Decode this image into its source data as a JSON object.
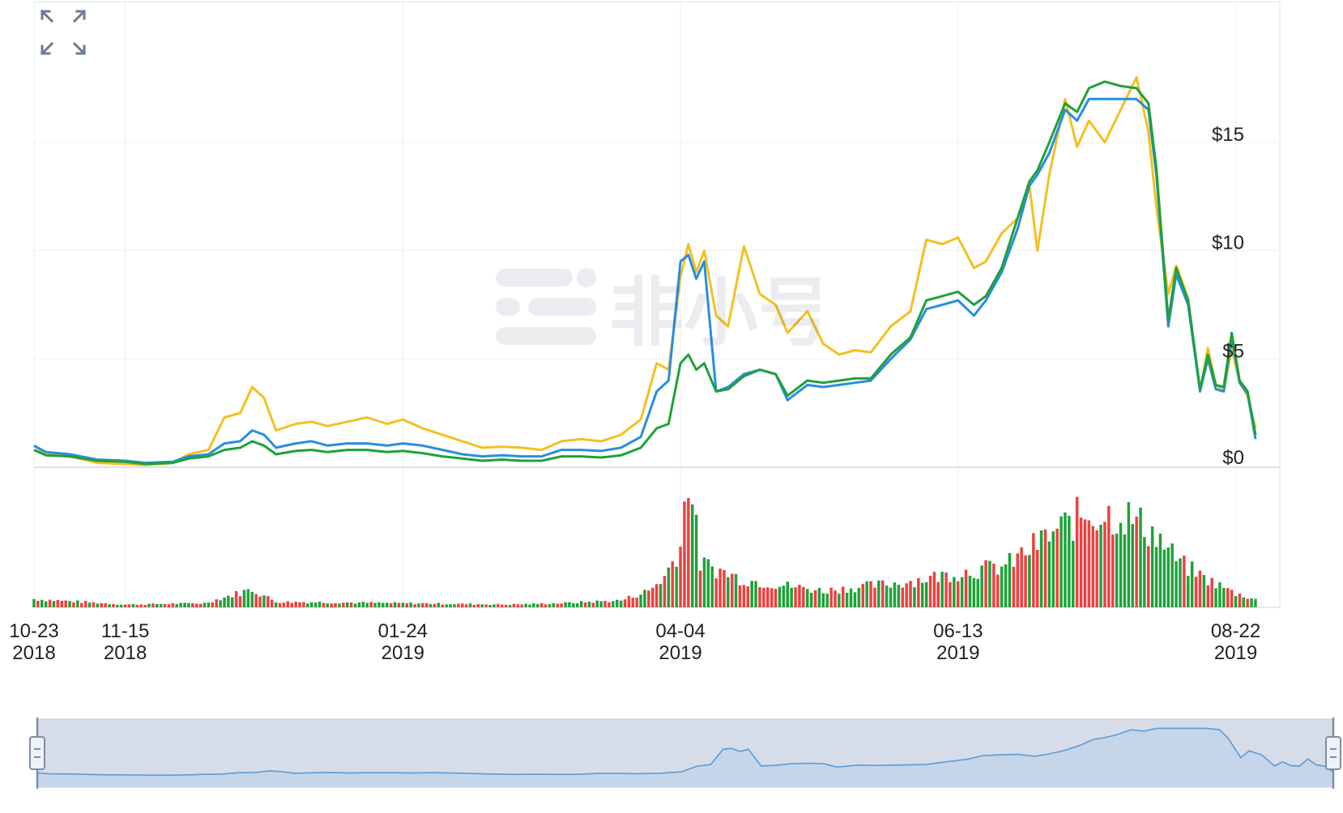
{
  "watermark": {
    "text": "非小号"
  },
  "toolbar": {
    "expand_icon": "expand-icon"
  },
  "colors": {
    "yellow": "#f4c020",
    "blue": "#2a8de0",
    "green": "#1fa13a",
    "vol_up": "#1fa13a",
    "vol_down": "#ef3f3f",
    "navigator_fill": "#d6dde9",
    "navigator_line": "#5b9bd5"
  },
  "chart_data": {
    "type": "line",
    "x_tick_labels": [
      {
        "date": "2018-10-23",
        "line1": "10-23",
        "line2": "2018"
      },
      {
        "date": "2018-11-15",
        "line1": "11-15",
        "line2": "2018"
      },
      {
        "date": "2019-01-24",
        "line1": "01-24",
        "line2": "2019"
      },
      {
        "date": "2019-04-04",
        "line1": "04-04",
        "line2": "2019"
      },
      {
        "date": "2019-06-13",
        "line1": "06-13",
        "line2": "2019"
      },
      {
        "date": "2019-08-22",
        "line1": "08-22",
        "line2": "2019"
      }
    ],
    "y_tick_labels": [
      {
        "value": 0,
        "label": "$0"
      },
      {
        "value": 5,
        "label": "$5"
      },
      {
        "value": 10,
        "label": "$10"
      },
      {
        "value": 15,
        "label": "$15"
      }
    ],
    "x_range": [
      "2018-10-23",
      "2019-08-27"
    ],
    "ylim": [
      0,
      20
    ],
    "grid": true,
    "series": [
      {
        "color": "yellow",
        "points": [
          [
            "2018-10-23",
            1.0
          ],
          [
            "2018-10-26",
            0.6
          ],
          [
            "2018-11-01",
            0.5
          ],
          [
            "2018-11-08",
            0.2
          ],
          [
            "2018-11-15",
            0.15
          ],
          [
            "2018-11-20",
            0.1
          ],
          [
            "2018-11-27",
            0.2
          ],
          [
            "2018-12-01",
            0.6
          ],
          [
            "2018-12-06",
            0.8
          ],
          [
            "2018-12-10",
            2.3
          ],
          [
            "2018-12-14",
            2.5
          ],
          [
            "2018-12-17",
            3.7
          ],
          [
            "2018-12-20",
            3.2
          ],
          [
            "2018-12-23",
            1.7
          ],
          [
            "2018-12-28",
            2.0
          ],
          [
            "2019-01-01",
            2.1
          ],
          [
            "2019-01-05",
            1.9
          ],
          [
            "2019-01-10",
            2.1
          ],
          [
            "2019-01-15",
            2.3
          ],
          [
            "2019-01-20",
            2.0
          ],
          [
            "2019-01-24",
            2.2
          ],
          [
            "2019-01-29",
            1.8
          ],
          [
            "2019-02-03",
            1.5
          ],
          [
            "2019-02-08",
            1.2
          ],
          [
            "2019-02-13",
            0.9
          ],
          [
            "2019-02-18",
            0.95
          ],
          [
            "2019-02-23",
            0.9
          ],
          [
            "2019-02-28",
            0.8
          ],
          [
            "2019-03-05",
            1.2
          ],
          [
            "2019-03-10",
            1.3
          ],
          [
            "2019-03-15",
            1.2
          ],
          [
            "2019-03-20",
            1.5
          ],
          [
            "2019-03-25",
            2.2
          ],
          [
            "2019-03-29",
            4.8
          ],
          [
            "2019-04-01",
            4.5
          ],
          [
            "2019-04-04",
            8.8
          ],
          [
            "2019-04-06",
            10.3
          ],
          [
            "2019-04-08",
            9.0
          ],
          [
            "2019-04-10",
            10.0
          ],
          [
            "2019-04-13",
            7.0
          ],
          [
            "2019-04-16",
            6.5
          ],
          [
            "2019-04-20",
            10.2
          ],
          [
            "2019-04-24",
            8.0
          ],
          [
            "2019-04-28",
            7.5
          ],
          [
            "2019-05-01",
            6.2
          ],
          [
            "2019-05-06",
            7.2
          ],
          [
            "2019-05-10",
            5.7
          ],
          [
            "2019-05-14",
            5.2
          ],
          [
            "2019-05-18",
            5.4
          ],
          [
            "2019-05-22",
            5.3
          ],
          [
            "2019-05-27",
            6.5
          ],
          [
            "2019-06-01",
            7.2
          ],
          [
            "2019-06-05",
            10.5
          ],
          [
            "2019-06-09",
            10.3
          ],
          [
            "2019-06-13",
            10.6
          ],
          [
            "2019-06-17",
            9.2
          ],
          [
            "2019-06-20",
            9.5
          ],
          [
            "2019-06-24",
            10.8
          ],
          [
            "2019-06-28",
            11.5
          ],
          [
            "2019-07-01",
            13.0
          ],
          [
            "2019-07-03",
            10.0
          ],
          [
            "2019-07-06",
            13.5
          ],
          [
            "2019-07-10",
            17.0
          ],
          [
            "2019-07-13",
            14.8
          ],
          [
            "2019-07-16",
            16.0
          ],
          [
            "2019-07-20",
            15.0
          ],
          [
            "2019-07-24",
            16.5
          ],
          [
            "2019-07-28",
            18.0
          ],
          [
            "2019-07-31",
            15.5
          ],
          [
            "2019-08-02",
            12.0
          ],
          [
            "2019-08-05",
            8.0
          ],
          [
            "2019-08-07",
            9.3
          ],
          [
            "2019-08-10",
            7.8
          ],
          [
            "2019-08-13",
            3.5
          ],
          [
            "2019-08-15",
            5.5
          ],
          [
            "2019-08-17",
            3.8
          ],
          [
            "2019-08-19",
            3.5
          ],
          [
            "2019-08-21",
            5.5
          ],
          [
            "2019-08-23",
            3.9
          ],
          [
            "2019-08-25",
            3.3
          ],
          [
            "2019-08-27",
            1.8
          ]
        ]
      },
      {
        "color": "blue",
        "points": [
          [
            "2018-10-23",
            1.0
          ],
          [
            "2018-10-26",
            0.7
          ],
          [
            "2018-11-01",
            0.6
          ],
          [
            "2018-11-08",
            0.35
          ],
          [
            "2018-11-15",
            0.3
          ],
          [
            "2018-11-20",
            0.2
          ],
          [
            "2018-11-27",
            0.25
          ],
          [
            "2018-12-01",
            0.5
          ],
          [
            "2018-12-06",
            0.6
          ],
          [
            "2018-12-10",
            1.1
          ],
          [
            "2018-12-14",
            1.2
          ],
          [
            "2018-12-17",
            1.7
          ],
          [
            "2018-12-20",
            1.5
          ],
          [
            "2018-12-23",
            0.9
          ],
          [
            "2018-12-28",
            1.1
          ],
          [
            "2019-01-01",
            1.2
          ],
          [
            "2019-01-05",
            1.0
          ],
          [
            "2019-01-10",
            1.1
          ],
          [
            "2019-01-15",
            1.1
          ],
          [
            "2019-01-20",
            1.0
          ],
          [
            "2019-01-24",
            1.1
          ],
          [
            "2019-01-29",
            1.0
          ],
          [
            "2019-02-03",
            0.8
          ],
          [
            "2019-02-08",
            0.6
          ],
          [
            "2019-02-13",
            0.5
          ],
          [
            "2019-02-18",
            0.55
          ],
          [
            "2019-02-23",
            0.5
          ],
          [
            "2019-02-28",
            0.5
          ],
          [
            "2019-03-05",
            0.8
          ],
          [
            "2019-03-10",
            0.8
          ],
          [
            "2019-03-15",
            0.75
          ],
          [
            "2019-03-20",
            0.9
          ],
          [
            "2019-03-25",
            1.4
          ],
          [
            "2019-03-29",
            3.5
          ],
          [
            "2019-04-01",
            4.0
          ],
          [
            "2019-04-04",
            9.5
          ],
          [
            "2019-04-06",
            9.8
          ],
          [
            "2019-04-08",
            8.7
          ],
          [
            "2019-04-10",
            9.5
          ],
          [
            "2019-04-13",
            3.5
          ],
          [
            "2019-04-16",
            3.7
          ],
          [
            "2019-04-20",
            4.3
          ],
          [
            "2019-04-24",
            4.5
          ],
          [
            "2019-04-28",
            4.3
          ],
          [
            "2019-05-01",
            3.1
          ],
          [
            "2019-05-06",
            3.8
          ],
          [
            "2019-05-10",
            3.7
          ],
          [
            "2019-05-14",
            3.8
          ],
          [
            "2019-05-18",
            3.9
          ],
          [
            "2019-05-22",
            4.0
          ],
          [
            "2019-05-27",
            5.0
          ],
          [
            "2019-06-01",
            5.9
          ],
          [
            "2019-06-05",
            7.3
          ],
          [
            "2019-06-09",
            7.5
          ],
          [
            "2019-06-13",
            7.7
          ],
          [
            "2019-06-17",
            7.0
          ],
          [
            "2019-06-20",
            7.7
          ],
          [
            "2019-06-24",
            9.0
          ],
          [
            "2019-06-28",
            11.0
          ],
          [
            "2019-07-01",
            13.0
          ],
          [
            "2019-07-03",
            13.5
          ],
          [
            "2019-07-06",
            14.5
          ],
          [
            "2019-07-10",
            16.5
          ],
          [
            "2019-07-13",
            16.0
          ],
          [
            "2019-07-16",
            17.0
          ],
          [
            "2019-07-20",
            17.0
          ],
          [
            "2019-07-24",
            17.0
          ],
          [
            "2019-07-28",
            17.0
          ],
          [
            "2019-07-31",
            16.5
          ],
          [
            "2019-08-02",
            13.5
          ],
          [
            "2019-08-05",
            6.5
          ],
          [
            "2019-08-07",
            8.9
          ],
          [
            "2019-08-10",
            7.5
          ],
          [
            "2019-08-13",
            3.5
          ],
          [
            "2019-08-15",
            5.0
          ],
          [
            "2019-08-17",
            3.6
          ],
          [
            "2019-08-19",
            3.5
          ],
          [
            "2019-08-21",
            6.0
          ],
          [
            "2019-08-23",
            3.9
          ],
          [
            "2019-08-25",
            3.4
          ],
          [
            "2019-08-27",
            1.3
          ]
        ]
      },
      {
        "color": "green",
        "points": [
          [
            "2018-10-23",
            0.8
          ],
          [
            "2018-10-26",
            0.55
          ],
          [
            "2018-11-01",
            0.5
          ],
          [
            "2018-11-08",
            0.3
          ],
          [
            "2018-11-15",
            0.25
          ],
          [
            "2018-11-20",
            0.15
          ],
          [
            "2018-11-27",
            0.2
          ],
          [
            "2018-12-01",
            0.4
          ],
          [
            "2018-12-06",
            0.5
          ],
          [
            "2018-12-10",
            0.8
          ],
          [
            "2018-12-14",
            0.9
          ],
          [
            "2018-12-17",
            1.2
          ],
          [
            "2018-12-20",
            1.0
          ],
          [
            "2018-12-23",
            0.6
          ],
          [
            "2018-12-28",
            0.75
          ],
          [
            "2019-01-01",
            0.8
          ],
          [
            "2019-01-05",
            0.7
          ],
          [
            "2019-01-10",
            0.8
          ],
          [
            "2019-01-15",
            0.8
          ],
          [
            "2019-01-20",
            0.7
          ],
          [
            "2019-01-24",
            0.75
          ],
          [
            "2019-01-29",
            0.65
          ],
          [
            "2019-02-03",
            0.5
          ],
          [
            "2019-02-08",
            0.4
          ],
          [
            "2019-02-13",
            0.3
          ],
          [
            "2019-02-18",
            0.35
          ],
          [
            "2019-02-23",
            0.3
          ],
          [
            "2019-02-28",
            0.3
          ],
          [
            "2019-03-05",
            0.5
          ],
          [
            "2019-03-10",
            0.5
          ],
          [
            "2019-03-15",
            0.45
          ],
          [
            "2019-03-20",
            0.55
          ],
          [
            "2019-03-25",
            0.9
          ],
          [
            "2019-03-29",
            1.8
          ],
          [
            "2019-04-01",
            2.0
          ],
          [
            "2019-04-04",
            4.8
          ],
          [
            "2019-04-06",
            5.2
          ],
          [
            "2019-04-08",
            4.5
          ],
          [
            "2019-04-10",
            4.8
          ],
          [
            "2019-04-13",
            3.5
          ],
          [
            "2019-04-16",
            3.6
          ],
          [
            "2019-04-20",
            4.2
          ],
          [
            "2019-04-24",
            4.5
          ],
          [
            "2019-04-28",
            4.3
          ],
          [
            "2019-05-01",
            3.3
          ],
          [
            "2019-05-06",
            4.0
          ],
          [
            "2019-05-10",
            3.9
          ],
          [
            "2019-05-14",
            4.0
          ],
          [
            "2019-05-18",
            4.1
          ],
          [
            "2019-05-22",
            4.1
          ],
          [
            "2019-05-27",
            5.2
          ],
          [
            "2019-06-01",
            6.0
          ],
          [
            "2019-06-05",
            7.7
          ],
          [
            "2019-06-09",
            7.9
          ],
          [
            "2019-06-13",
            8.1
          ],
          [
            "2019-06-17",
            7.5
          ],
          [
            "2019-06-20",
            7.9
          ],
          [
            "2019-06-24",
            9.2
          ],
          [
            "2019-06-28",
            11.5
          ],
          [
            "2019-07-01",
            13.2
          ],
          [
            "2019-07-03",
            13.7
          ],
          [
            "2019-07-06",
            15.0
          ],
          [
            "2019-07-10",
            16.8
          ],
          [
            "2019-07-13",
            16.4
          ],
          [
            "2019-07-16",
            17.5
          ],
          [
            "2019-07-20",
            17.8
          ],
          [
            "2019-07-24",
            17.6
          ],
          [
            "2019-07-28",
            17.5
          ],
          [
            "2019-07-31",
            16.8
          ],
          [
            "2019-08-02",
            13.8
          ],
          [
            "2019-08-05",
            6.8
          ],
          [
            "2019-08-07",
            9.2
          ],
          [
            "2019-08-10",
            7.7
          ],
          [
            "2019-08-13",
            3.6
          ],
          [
            "2019-08-15",
            5.2
          ],
          [
            "2019-08-17",
            3.8
          ],
          [
            "2019-08-19",
            3.7
          ],
          [
            "2019-08-21",
            6.2
          ],
          [
            "2019-08-23",
            4.0
          ],
          [
            "2019-08-25",
            3.5
          ],
          [
            "2019-08-27",
            1.5
          ]
        ]
      }
    ],
    "volume_anchors": [
      [
        "2018-10-23",
        0.06
      ],
      [
        "2018-11-15",
        0.02
      ],
      [
        "2018-12-05",
        0.03
      ],
      [
        "2018-12-12",
        0.09
      ],
      [
        "2018-12-17",
        0.13
      ],
      [
        "2018-12-23",
        0.04
      ],
      [
        "2019-01-24",
        0.03
      ],
      [
        "2019-02-20",
        0.02
      ],
      [
        "2019-03-05",
        0.03
      ],
      [
        "2019-03-20",
        0.05
      ],
      [
        "2019-03-27",
        0.12
      ],
      [
        "2019-03-31",
        0.22
      ],
      [
        "2019-04-04",
        0.45
      ],
      [
        "2019-04-06",
        1.0
      ],
      [
        "2019-04-09",
        0.32
      ],
      [
        "2019-04-20",
        0.2
      ],
      [
        "2019-05-10",
        0.12
      ],
      [
        "2019-05-30",
        0.18
      ],
      [
        "2019-06-13",
        0.25
      ],
      [
        "2019-06-25",
        0.3
      ],
      [
        "2019-07-05",
        0.5
      ],
      [
        "2019-07-15",
        0.68
      ],
      [
        "2019-07-25",
        0.67
      ],
      [
        "2019-08-01",
        0.55
      ],
      [
        "2019-08-08",
        0.32
      ],
      [
        "2019-08-15",
        0.2
      ],
      [
        "2019-08-22",
        0.1
      ],
      [
        "2019-08-27",
        0.06
      ]
    ],
    "volume_down_fraction": 0.45
  }
}
